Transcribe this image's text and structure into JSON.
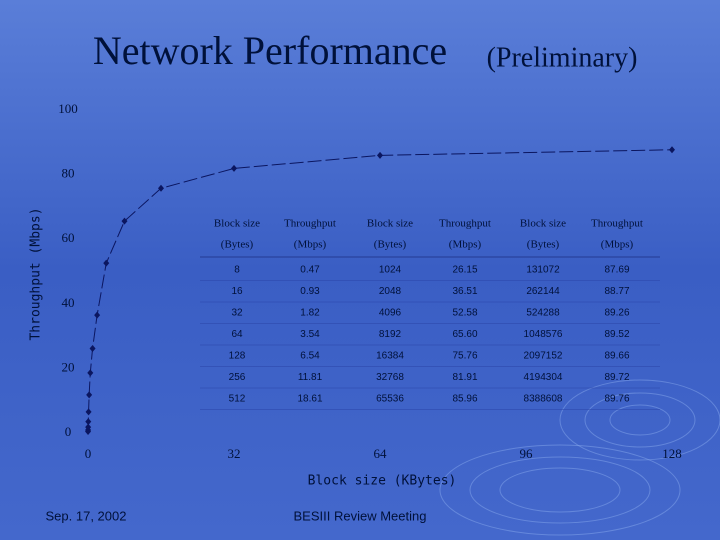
{
  "title": "Network Performance",
  "subtitle": "(Preliminary)",
  "chart_data": {
    "type": "line",
    "xlabel": "Block size (KBytes)",
    "ylabel": "Throughput (Mbps)",
    "x": [
      0.0078125,
      0.015625,
      0.03125,
      0.0625,
      0.125,
      0.25,
      0.5,
      1,
      2,
      4,
      8,
      16,
      32,
      64,
      128
    ],
    "series": [
      {
        "color": "#0b1660",
        "values": [
          0.47,
          0.93,
          1.82,
          3.54,
          6.54,
          11.81,
          18.61,
          26.15,
          36.51,
          52.58,
          65.6,
          75.76,
          81.91,
          85.96,
          87.69
        ]
      }
    ],
    "xlim": [
      0,
      128
    ],
    "ylim": [
      0,
      100
    ],
    "xticks": [
      0,
      32,
      64,
      96,
      128
    ],
    "yticks": [
      0,
      20,
      40,
      60,
      80,
      100
    ],
    "grid": false
  },
  "table": {
    "header": [
      [
        "Block size",
        "(Bytes)"
      ],
      [
        "Throughput",
        "(Mbps)"
      ],
      [
        "Block size",
        "(Bytes)"
      ],
      [
        "Throughput",
        "(Mbps)"
      ],
      [
        "Block size",
        "(Bytes)"
      ],
      [
        "Throughput",
        "(Mbps)"
      ]
    ],
    "rows": [
      [
        "8",
        "0.47",
        "1024",
        "26.15",
        "131072",
        "87.69"
      ],
      [
        "16",
        "0.93",
        "2048",
        "36.51",
        "262144",
        "88.77"
      ],
      [
        "32",
        "1.82",
        "4096",
        "52.58",
        "524288",
        "89.26"
      ],
      [
        "64",
        "3.54",
        "8192",
        "65.60",
        "1048576",
        "89.52"
      ],
      [
        "128",
        "6.54",
        "16384",
        "75.76",
        "2097152",
        "89.66"
      ],
      [
        "256",
        "11.81",
        "32768",
        "81.91",
        "4194304",
        "89.72"
      ],
      [
        "512",
        "18.61",
        "65536",
        "85.96",
        "8388608",
        "89.76"
      ]
    ]
  },
  "footer": {
    "date": "Sep. 17, 2002",
    "meeting": "BESIII Review Meeting"
  }
}
